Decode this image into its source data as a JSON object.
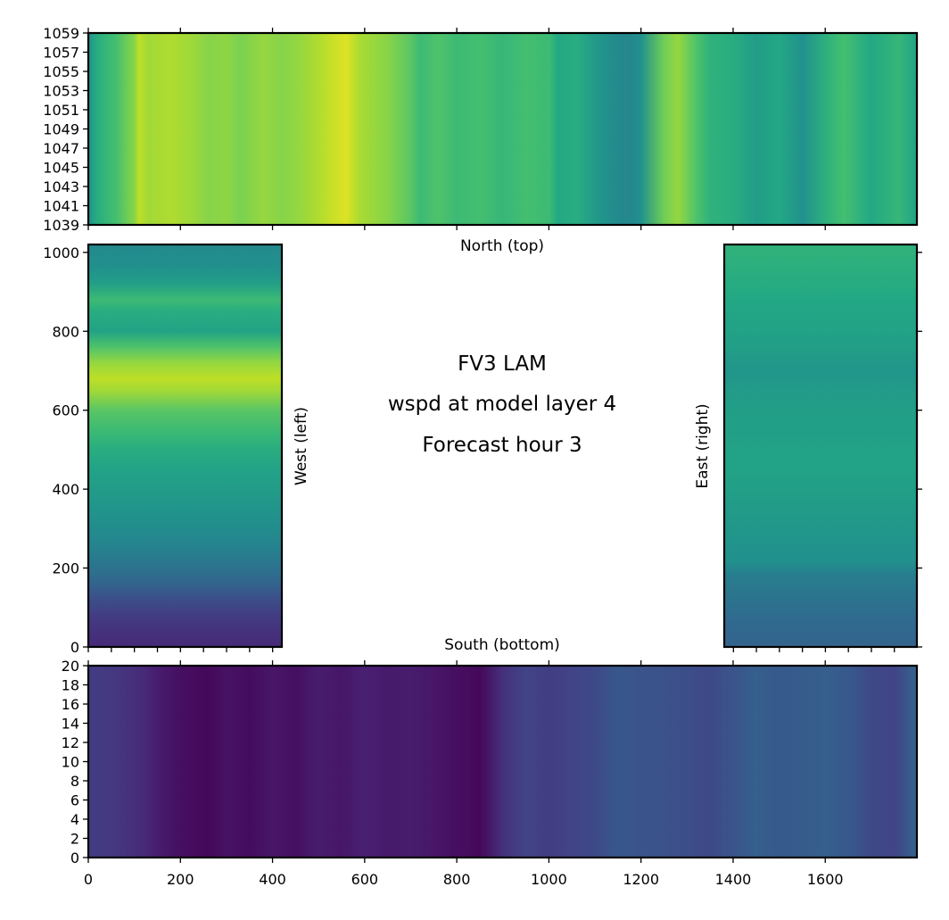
{
  "figure": {
    "title_lines": [
      "FV3 LAM",
      "wspd at model layer 4",
      "Forecast hour 3"
    ],
    "colormap": "viridis"
  },
  "chart_data": [
    {
      "type": "heatmap",
      "panel": "north",
      "label": "North (top)",
      "xlim": [
        0,
        1799
      ],
      "ylim": [
        1039,
        1059
      ],
      "x_ticks": [
        0,
        200,
        400,
        600,
        800,
        1000,
        1200,
        1400,
        1600
      ],
      "x_tick_labels_shown": false,
      "y_ticks": [
        1039,
        1041,
        1043,
        1045,
        1047,
        1049,
        1051,
        1053,
        1055,
        1057,
        1059
      ],
      "y_tick_labels": [
        "1039",
        "1041",
        "1043",
        "1045",
        "1047",
        "1049",
        "1051",
        "1053",
        "1055",
        "1057",
        "1059"
      ],
      "vary_along": "x",
      "profile": {
        "x": [
          0,
          20,
          60,
          100,
          110,
          130,
          180,
          230,
          260,
          300,
          330,
          380,
          420,
          460,
          500,
          540,
          560,
          590,
          650,
          700,
          720,
          760,
          800,
          850,
          900,
          950,
          1000,
          1020,
          1060,
          1100,
          1150,
          1180,
          1200,
          1250,
          1280,
          1320,
          1350,
          1400,
          1450,
          1500,
          1550,
          1600,
          1640,
          1700,
          1760,
          1799
        ],
        "value": [
          0.5,
          0.62,
          0.7,
          0.82,
          0.9,
          0.86,
          0.88,
          0.85,
          0.82,
          0.83,
          0.8,
          0.84,
          0.82,
          0.84,
          0.88,
          0.93,
          0.95,
          0.87,
          0.82,
          0.74,
          0.68,
          0.72,
          0.68,
          0.7,
          0.66,
          0.7,
          0.68,
          0.6,
          0.62,
          0.54,
          0.47,
          0.46,
          0.5,
          0.78,
          0.84,
          0.72,
          0.64,
          0.62,
          0.55,
          0.6,
          0.5,
          0.63,
          0.7,
          0.6,
          0.66,
          0.58
        ]
      }
    },
    {
      "type": "heatmap",
      "panel": "west",
      "label": "West (left)",
      "xlim": [
        0,
        420
      ],
      "ylim": [
        0,
        1020
      ],
      "x_ticks": [
        0,
        50,
        100,
        150,
        200,
        250,
        300,
        350,
        400
      ],
      "x_tick_labels_shown": false,
      "y_ticks": [
        0,
        200,
        400,
        600,
        800,
        1000
      ],
      "y_tick_labels": [
        "0",
        "200",
        "400",
        "600",
        "800",
        "1000"
      ],
      "vary_along": "y",
      "profile": {
        "y": [
          0,
          40,
          80,
          120,
          160,
          200,
          250,
          300,
          350,
          400,
          450,
          500,
          550,
          600,
          650,
          680,
          720,
          760,
          800,
          850,
          880,
          920,
          960,
          1000,
          1020
        ],
        "value": [
          0.12,
          0.14,
          0.18,
          0.24,
          0.32,
          0.38,
          0.44,
          0.48,
          0.52,
          0.55,
          0.58,
          0.62,
          0.68,
          0.74,
          0.86,
          0.9,
          0.84,
          0.72,
          0.58,
          0.62,
          0.68,
          0.56,
          0.5,
          0.48,
          0.46
        ]
      }
    },
    {
      "type": "heatmap",
      "panel": "east",
      "label": "East (right)",
      "xlim": [
        1380,
        1799
      ],
      "ylim": [
        0,
        1020
      ],
      "x_ticks": [
        1400,
        1450,
        1500,
        1550,
        1600,
        1650,
        1700,
        1750
      ],
      "x_tick_labels_shown": false,
      "y_ticks": [
        0,
        200,
        400,
        600,
        800,
        1000
      ],
      "y_tick_labels_shown": false,
      "vary_along": "y",
      "profile": {
        "y": [
          0,
          60,
          120,
          180,
          220,
          280,
          340,
          400,
          460,
          520,
          580,
          640,
          700,
          760,
          820,
          880,
          940,
          1000,
          1020
        ],
        "value": [
          0.32,
          0.34,
          0.38,
          0.42,
          0.5,
          0.52,
          0.54,
          0.56,
          0.58,
          0.57,
          0.56,
          0.55,
          0.52,
          0.56,
          0.58,
          0.6,
          0.62,
          0.64,
          0.64
        ]
      }
    },
    {
      "type": "heatmap",
      "panel": "south",
      "label": "South (bottom)",
      "xlim": [
        0,
        1799
      ],
      "ylim": [
        0,
        20
      ],
      "x_ticks": [
        0,
        200,
        400,
        600,
        800,
        1000,
        1200,
        1400,
        1600
      ],
      "x_tick_labels": [
        "0",
        "200",
        "400",
        "600",
        "800",
        "1000",
        "1200",
        "1400",
        "1600"
      ],
      "y_ticks": [
        0,
        2,
        4,
        6,
        8,
        10,
        12,
        14,
        16,
        18,
        20
      ],
      "y_tick_labels": [
        "0",
        "2",
        "4",
        "6",
        "8",
        "10",
        "12",
        "14",
        "16",
        "18",
        "20"
      ],
      "vary_along": "x",
      "profile": {
        "x": [
          0,
          60,
          120,
          150,
          200,
          260,
          300,
          350,
          400,
          450,
          500,
          550,
          600,
          650,
          700,
          750,
          800,
          850,
          900,
          950,
          1000,
          1050,
          1100,
          1150,
          1200,
          1300,
          1350,
          1400,
          1450,
          1500,
          1600,
          1650,
          1700,
          1750,
          1799
        ],
        "value": [
          0.18,
          0.16,
          0.12,
          0.08,
          0.04,
          0.02,
          0.05,
          0.03,
          0.06,
          0.04,
          0.08,
          0.06,
          0.09,
          0.07,
          0.08,
          0.06,
          0.04,
          0.02,
          0.14,
          0.2,
          0.18,
          0.2,
          0.22,
          0.27,
          0.26,
          0.24,
          0.22,
          0.26,
          0.3,
          0.28,
          0.3,
          0.28,
          0.22,
          0.2,
          0.32
        ]
      }
    }
  ]
}
